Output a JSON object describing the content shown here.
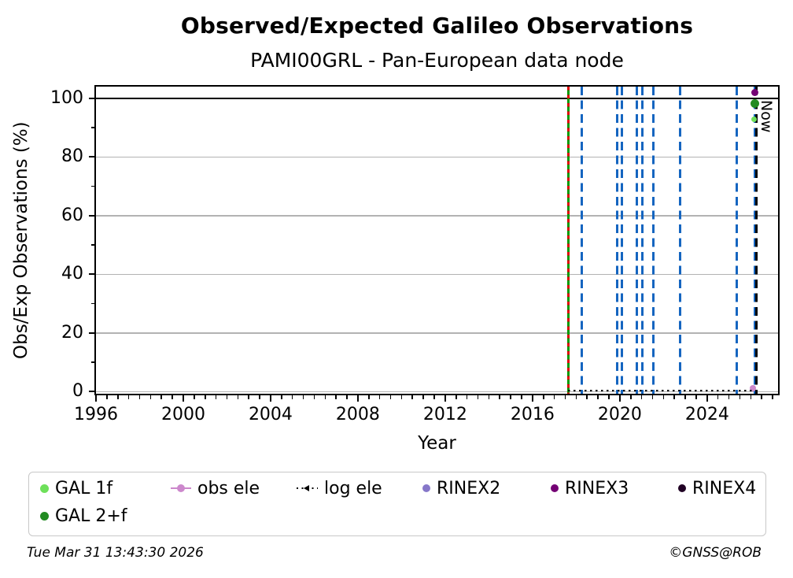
{
  "now_label": "Now",
  "footer": {
    "timestamp": "Tue Mar 31 13:43:30 2026",
    "copyright": "©GNSS@ROB"
  },
  "colors": {
    "gal_1f": "#6ee05a",
    "gal_2f": "#228b22",
    "obs_ele": "#cc88cc",
    "log_ele": "#000000",
    "rinex2": "#8677c9",
    "rinex3": "#740074",
    "rinex4": "#200024",
    "event_blue": "#1565c0",
    "event_green": "#009b00",
    "event_red": "#e10000",
    "now_line": "#000000",
    "grid": "#b3b3b3",
    "axis": "#000000",
    "legend_border": "#c8c8c8"
  },
  "chart_data": {
    "type": "scatter",
    "title": "Observed/Expected Galileo Observations",
    "subtitle": "PAMI00GRL - Pan-European data node",
    "xlabel": "Year",
    "ylabel": "Obs/Exp Observations (%)",
    "xlim": [
      1996,
      2027.25
    ],
    "ylim": [
      -0.7,
      104
    ],
    "x_major_ticks": [
      1996,
      2000,
      2004,
      2008,
      2012,
      2016,
      2020,
      2024
    ],
    "x_minor_step": 0.5,
    "y_major_ticks": [
      0,
      20,
      40,
      60,
      80,
      100
    ],
    "y_minor_step": 10,
    "grid": "horizontal-major",
    "legend_position": "below",
    "reference_lines": [
      {
        "axis": "y",
        "value": 100,
        "style": "solid",
        "color": "#000000",
        "name": "expected-100-line"
      }
    ],
    "event_lines": [
      {
        "x": 2017.63,
        "style": "solid",
        "color": "#009b00",
        "name": "station-event-green"
      },
      {
        "x": 2017.63,
        "style": "dotted",
        "color": "#e10000",
        "name": "station-event-red"
      },
      {
        "x": 2018.25,
        "style": "dashed",
        "color": "#1565c0",
        "name": "station-event-blue"
      },
      {
        "x": 2019.87,
        "style": "dashed",
        "color": "#1565c0",
        "name": "station-event-blue"
      },
      {
        "x": 2020.11,
        "style": "dashed",
        "color": "#1565c0",
        "name": "station-event-blue"
      },
      {
        "x": 2020.78,
        "style": "dashed",
        "color": "#1565c0",
        "name": "station-event-blue"
      },
      {
        "x": 2021.03,
        "style": "dashed",
        "color": "#1565c0",
        "name": "station-event-blue"
      },
      {
        "x": 2021.55,
        "style": "dashed",
        "color": "#1565c0",
        "name": "station-event-blue"
      },
      {
        "x": 2022.78,
        "style": "dashed",
        "color": "#1565c0",
        "name": "station-event-blue"
      },
      {
        "x": 2025.35,
        "style": "dashed",
        "color": "#1565c0",
        "name": "station-event-blue"
      },
      {
        "x": 2026.17,
        "style": "dashed",
        "color": "#1565c0",
        "name": "station-event-blue"
      },
      {
        "x": 2026.25,
        "style": "dashed",
        "color": "#000000",
        "name": "now-line"
      }
    ],
    "series": [
      {
        "name": "GAL 1f",
        "color": "#6ee05a",
        "marker": "circle",
        "size": 7,
        "points": [
          {
            "x": 2026.15,
            "y": 92.8
          }
        ]
      },
      {
        "name": "GAL 2+f",
        "color": "#228b22",
        "marker": "circle",
        "size": 11,
        "points": [
          {
            "x": 2026.2,
            "y": 98.3
          }
        ]
      },
      {
        "name": "obs ele",
        "color": "#cc88cc",
        "marker": "circle-line",
        "size": 8,
        "points": [
          {
            "x": 2026.1,
            "y": 1.2
          }
        ]
      },
      {
        "name": "log ele",
        "color": "#000000",
        "marker": "dotted-line",
        "size": 2,
        "points": [],
        "segments": [
          {
            "x1": 2017.63,
            "x2": 2026.3,
            "y": 0.3
          }
        ]
      },
      {
        "name": "RINEX2",
        "color": "#8677c9",
        "marker": "circle",
        "size": 9,
        "points": []
      },
      {
        "name": "RINEX3",
        "color": "#740074",
        "marker": "circle",
        "size": 9,
        "points": [
          {
            "x": 2026.2,
            "y": 102
          }
        ]
      },
      {
        "name": "RINEX4",
        "color": "#200024",
        "marker": "circle",
        "size": 9,
        "points": []
      }
    ]
  }
}
